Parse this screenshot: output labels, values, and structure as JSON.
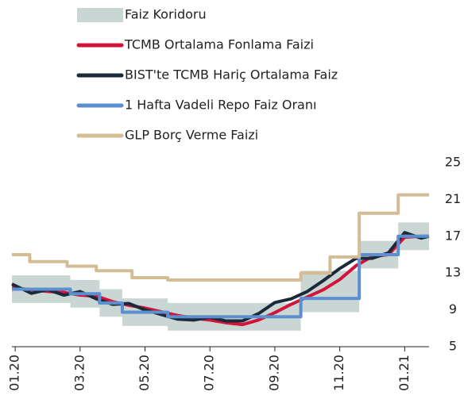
{
  "chart_data": {
    "type": "line",
    "band": {
      "name": "Faiz Koridoru",
      "color": "#c9d6d3",
      "x": [
        -0.1,
        1.7,
        1.7,
        2.6,
        2.6,
        3.3,
        3.3,
        4.7,
        4.7,
        8.8,
        8.8,
        10.6,
        10.6,
        11.8,
        11.8,
        12.75
      ],
      "lower": [
        9.75,
        9.75,
        9.25,
        9.25,
        8.25,
        8.25,
        7.25,
        7.25,
        6.75,
        6.75,
        8.75,
        8.75,
        13.5,
        13.5,
        15.5,
        15.5
      ],
      "upper": [
        12.75,
        12.75,
        12.25,
        12.25,
        11.25,
        11.25,
        10.25,
        10.25,
        9.75,
        9.75,
        13.25,
        13.25,
        16.5,
        16.5,
        18.5,
        18.5
      ]
    },
    "series": [
      {
        "name": "TCMB Ortalama Fonlama Faizi",
        "color": "#d2143a",
        "x": [
          -0.1,
          0.5,
          1,
          1.5,
          2,
          2.5,
          3,
          3.5,
          4,
          4.5,
          5,
          5.5,
          6,
          6.5,
          7,
          7.5,
          8,
          8.5,
          9,
          9.5,
          10,
          10.5,
          11,
          11.5,
          12,
          12.5,
          12.75
        ],
        "values": [
          11.4,
          11.2,
          11.0,
          10.9,
          10.6,
          10.5,
          9.9,
          9.5,
          9.2,
          8.8,
          8.4,
          8.1,
          7.9,
          7.6,
          7.4,
          7.9,
          8.7,
          9.6,
          10.4,
          11.2,
          12.3,
          13.8,
          14.8,
          15.0,
          16.9,
          17.0,
          17.0
        ]
      },
      {
        "name": "BIST'te TCMB Hariç Ortalama Faiz",
        "color": "#1a2a3a",
        "x": [
          -0.1,
          0.5,
          1,
          1.5,
          2,
          2.5,
          3,
          3.5,
          4,
          4.5,
          5,
          5.5,
          6,
          6.5,
          7,
          7.5,
          8,
          8.5,
          9,
          9.5,
          10,
          10.5,
          11,
          11.5,
          12,
          12.5,
          12.75
        ],
        "values": [
          11.8,
          10.8,
          11.2,
          10.6,
          11.0,
          10.2,
          9.6,
          9.7,
          9.0,
          8.5,
          8.0,
          7.9,
          8.2,
          7.8,
          7.8,
          8.6,
          9.8,
          10.2,
          11.0,
          12.2,
          13.5,
          14.6,
          14.6,
          15.2,
          17.4,
          16.8,
          17.0
        ]
      },
      {
        "name": "1 Hafta Vadeli Repo Faiz Oranı",
        "color": "#5b8fd0",
        "x": [
          -0.1,
          1.7,
          1.7,
          2.6,
          2.6,
          3.3,
          3.3,
          4.7,
          4.7,
          8.8,
          8.8,
          10.6,
          10.6,
          11.8,
          11.8,
          12.75
        ],
        "values": [
          11.25,
          11.25,
          10.75,
          10.75,
          9.75,
          9.75,
          8.75,
          8.75,
          8.25,
          8.25,
          10.25,
          10.25,
          15,
          15,
          17,
          17
        ]
      },
      {
        "name": "GLP Borç Verme Faizi",
        "color": "#d4bc94",
        "x": [
          -0.1,
          0.45,
          0.45,
          1.6,
          1.6,
          2.5,
          2.5,
          3.6,
          3.6,
          4.7,
          4.7,
          8.8,
          8.8,
          9.7,
          9.7,
          10.6,
          10.6,
          11.8,
          11.8,
          12.75
        ],
        "values": [
          15,
          15,
          14.25,
          14.25,
          13.75,
          13.75,
          13.25,
          13.25,
          12.5,
          12.5,
          12.25,
          12.25,
          13,
          13,
          14.75,
          14.75,
          19.5,
          19.5,
          21.5,
          21.5
        ]
      }
    ],
    "xlim": [
      -0.1,
      12.75
    ],
    "xticks": [
      {
        "value": 0,
        "label": "01.20"
      },
      {
        "value": 2,
        "label": "03.20"
      },
      {
        "value": 4,
        "label": "05.20"
      },
      {
        "value": 6,
        "label": "07.20"
      },
      {
        "value": 8,
        "label": "09.20"
      },
      {
        "value": 10,
        "label": "11.20"
      },
      {
        "value": 12,
        "label": "01.21"
      }
    ],
    "ylim": [
      5,
      25
    ],
    "yticks": [
      5,
      9,
      13,
      17,
      21,
      25
    ]
  }
}
